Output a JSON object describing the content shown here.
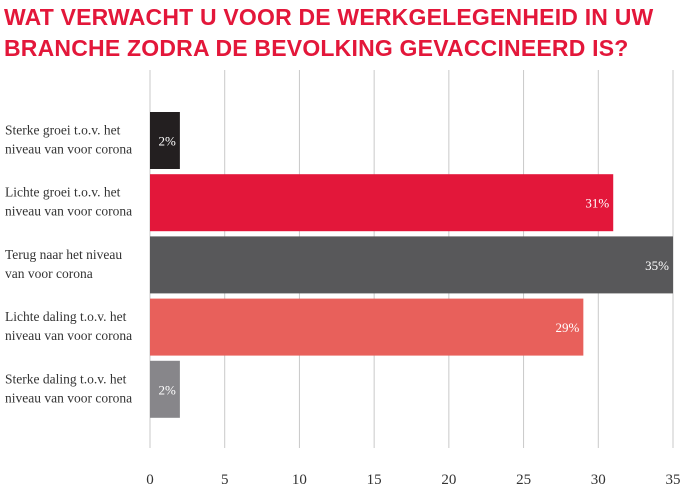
{
  "chart_data": {
    "type": "bar",
    "orientation": "horizontal",
    "title": "WAT VERWACHT U VOOR DE WERKGELEGENHEID IN UW BRANCHE ZODRA DE BEVOLKING GEVACCINEERD IS?",
    "categories": [
      [
        "Sterke groei t.o.v. het",
        "niveau van voor corona"
      ],
      [
        "Lichte groei t.o.v. het",
        "niveau van voor corona"
      ],
      [
        "Terug naar het niveau",
        "van voor corona"
      ],
      [
        "Lichte daling t.o.v. het",
        "niveau van voor corona"
      ],
      [
        "Sterke daling t.o.v. het",
        "niveau van voor corona"
      ]
    ],
    "values": [
      2,
      31,
      35,
      29,
      2
    ],
    "value_labels": [
      "2%",
      "31%",
      "35%",
      "29%",
      "2%"
    ],
    "colors": [
      "#231f20",
      "#e3173a",
      "#58585a",
      "#e8605b",
      "#87868a"
    ],
    "xlim": [
      0,
      35
    ],
    "xticks": [
      "0",
      "5",
      "10",
      "15",
      "20",
      "25",
      "30",
      "35"
    ],
    "grid": true
  }
}
